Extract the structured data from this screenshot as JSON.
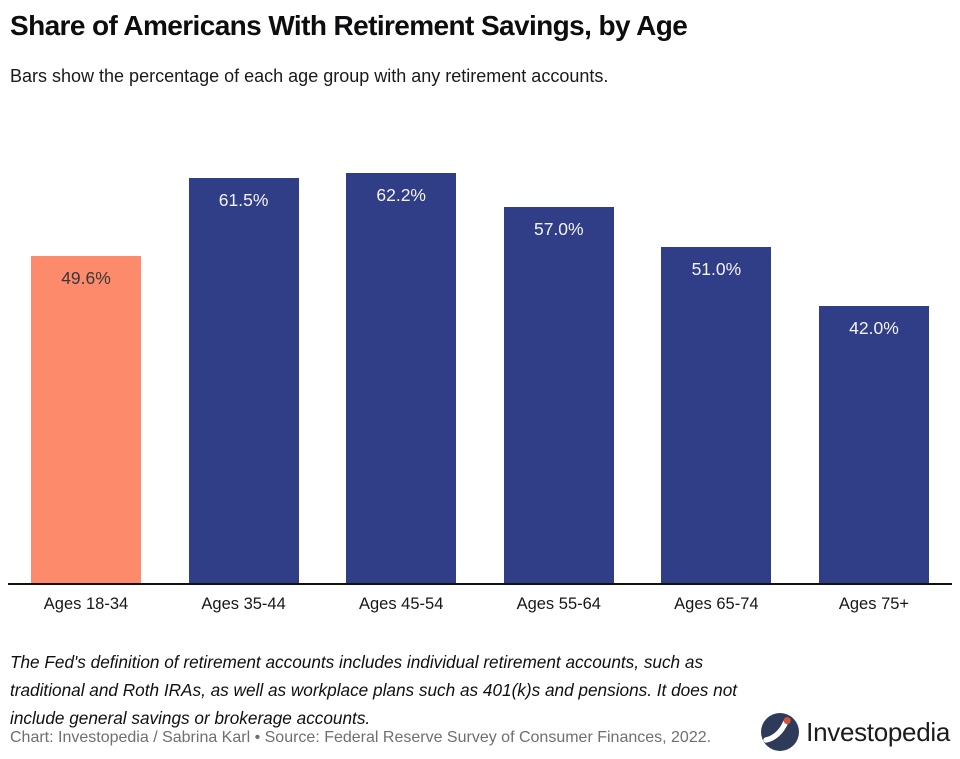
{
  "header": {
    "title": "Share of Americans With Retirement Savings, by Age",
    "subtitle": "Bars show the percentage of each age group with any retirement accounts."
  },
  "chart_data": {
    "type": "bar",
    "title": "Share of Americans With Retirement Savings, by Age",
    "subtitle": "Bars show the percentage of each age group with any retirement accounts.",
    "categories": [
      "Ages 18-34",
      "Ages 35-44",
      "Ages 45-54",
      "Ages 55-64",
      "Ages 65-74",
      "Ages 75+"
    ],
    "values": [
      49.6,
      61.5,
      62.2,
      57.0,
      51.0,
      42.0
    ],
    "value_labels": [
      "49.6%",
      "61.5%",
      "62.2%",
      "57.0%",
      "51.0%",
      "42.0%"
    ],
    "xlabel": "",
    "ylabel": "",
    "ylim": [
      0,
      65.7
    ],
    "grid": false,
    "legend": "none",
    "highlight_index": 0,
    "colors": {
      "bar": "#303d87",
      "highlight": "#fc8a6b",
      "label_on_bar": "#f4f4f7",
      "label_on_highlight": "#38383c",
      "axis_line": "#111113"
    }
  },
  "footer": {
    "note": "The Fed's definition of retirement accounts includes individual retirement accounts, such as traditional and Roth IRAs, as well as workplace plans such as 401(k)s and pensions. It does not include general savings or brokerage accounts.",
    "credit": "Chart: Investopedia / Sabrina Karl • Source: Federal Reserve Survey of Consumer Finances, 2022.",
    "logo_text": "Investopedia",
    "logo_colors": {
      "circle": "#2e3a59",
      "swoosh": "#ffffff",
      "dot": "#d9503a"
    }
  }
}
